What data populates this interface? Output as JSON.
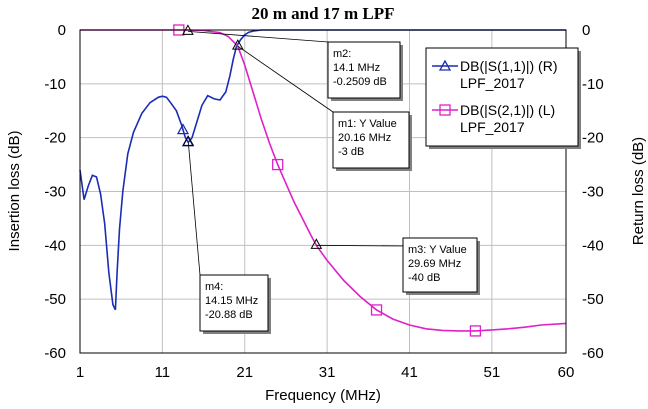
{
  "chart_data": {
    "type": "line",
    "title": "20 m and 17 m LPF",
    "xlabel": "Frequency (MHz)",
    "ylabel_left": "Insertion loss (dB)",
    "ylabel_right": "Return loss (dB)",
    "xlim": [
      1,
      60
    ],
    "ylim": [
      -60,
      0
    ],
    "x_ticks": [
      "1",
      "11",
      "21",
      "31",
      "41",
      "51",
      "60"
    ],
    "y_ticks_left": [
      "0",
      "-10",
      "-20",
      "-30",
      "-40",
      "-50",
      "-60"
    ],
    "y_ticks_right": [
      "0",
      "-10",
      "-20",
      "-30",
      "-40",
      "-50",
      "-60"
    ],
    "grid": true,
    "legend_position": "top-right",
    "colors": {
      "s11": "#1a2db4",
      "s21": "#e020c8"
    },
    "series": [
      {
        "name": "DB(|S(1,1)|) (R)",
        "name_line2": "LPF_2017",
        "axis": "right",
        "x": [
          1,
          1.5,
          2,
          2.5,
          3,
          3.5,
          4,
          4.5,
          5,
          5.3,
          5.5,
          5.8,
          6.2,
          6.8,
          7.5,
          8.5,
          9.5,
          10.5,
          11,
          11.5,
          12,
          12.7,
          13.3,
          13.8,
          14.15,
          14.6,
          15.2,
          15.8,
          16.5,
          17.3,
          18,
          18.7,
          19.2,
          19.6,
          20,
          20.5,
          21,
          21.5,
          22,
          23,
          25,
          30,
          40,
          50,
          60
        ],
        "y": [
          -26,
          -31.5,
          -29,
          -27,
          -27.3,
          -30.5,
          -36,
          -45,
          -51,
          -52,
          -45,
          -37,
          -30,
          -23,
          -19,
          -15.5,
          -13.5,
          -12.5,
          -12.3,
          -12.5,
          -13.5,
          -15,
          -17.5,
          -20,
          -20.88,
          -20,
          -17,
          -14,
          -12.2,
          -12.8,
          -13,
          -11.5,
          -8.5,
          -5.5,
          -3,
          -1.8,
          -0.9,
          -0.4,
          -0.2,
          0,
          0,
          0,
          0,
          0,
          0
        ]
      },
      {
        "name": "DB(|S(2,1)|) (L)",
        "name_line2": "LPF_2017",
        "axis": "left",
        "x": [
          1,
          5,
          10,
          14,
          16,
          18,
          19,
          20.16,
          21,
          22,
          23,
          24,
          25,
          26,
          27,
          28,
          29,
          29.69,
          31,
          33,
          35,
          37,
          39,
          41,
          43,
          45,
          47,
          49,
          51,
          53,
          55,
          57,
          60
        ],
        "y": [
          0,
          0,
          0,
          0,
          -0.1,
          -0.5,
          -1.2,
          -3,
          -6.5,
          -11.5,
          -16.5,
          -21,
          -25,
          -28.5,
          -32,
          -35,
          -38,
          -40,
          -42.8,
          -46.5,
          -49.5,
          -52,
          -53.7,
          -54.8,
          -55.5,
          -55.8,
          -55.9,
          -55.9,
          -55.7,
          -55.5,
          -55.2,
          -54.8,
          -54.5
        ]
      }
    ],
    "markers": [
      {
        "id": "m1",
        "label": "m1: Y Value",
        "x": 20.16,
        "y": -3,
        "lines": [
          "20.16 MHz",
          "-3 dB"
        ]
      },
      {
        "id": "m2",
        "label": "m2:",
        "x": 14.1,
        "y": -0.2509,
        "lines": [
          "14.1 MHz",
          "-0.2509 dB"
        ]
      },
      {
        "id": "m3",
        "label": "m3: Y Value",
        "x": 29.69,
        "y": -40,
        "lines": [
          "29.69 MHz",
          "-40 dB"
        ]
      },
      {
        "id": "m4",
        "label": "m4:",
        "x": 14.15,
        "y": -20.88,
        "lines": [
          "14.15 MHz",
          "-20.88 dB"
        ]
      }
    ]
  }
}
